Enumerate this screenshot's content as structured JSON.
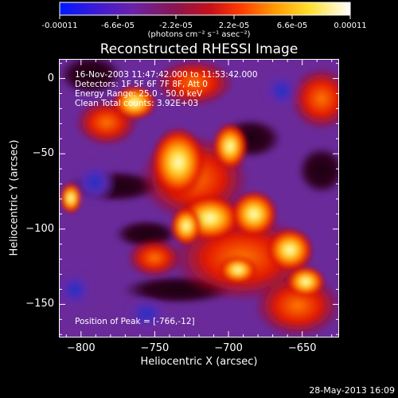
{
  "colorbar": {
    "tick_labels": [
      "-0.00011",
      "-6.6e-05",
      "-2.2e-05",
      "2.2e-05",
      "6.6e-05",
      "0.00011"
    ],
    "units": "(photons cm⁻² s⁻¹ asec⁻²)",
    "min": -0.00011,
    "max": 0.00011
  },
  "chart_data": {
    "type": "heatmap",
    "title": "Reconstructed RHESSI Image",
    "xlabel": "Heliocentric X (arcsec)",
    "ylabel": "Heliocentric Y (arcsec)",
    "xlim": [
      -815,
      -625
    ],
    "ylim": [
      -172,
      13
    ],
    "x_ticks": [
      -800,
      -750,
      -700,
      -650
    ],
    "x_tick_labels": [
      "−800",
      "−750",
      "−700",
      "−650"
    ],
    "y_ticks": [
      0,
      -50,
      -100,
      -150
    ],
    "y_tick_labels": [
      "0",
      "−50",
      "−100",
      "−150"
    ],
    "peak_position": [
      -766,
      -12
    ],
    "colormap": "blue-purple-red-yellow-white (rainbow 3)"
  },
  "annotations": {
    "line1": "16-Nov-2003 11:47:42.000 to 11:53:42.000",
    "line2": "Detectors: 1F 5F 6F 7F 8F, Att 0",
    "line3": "Energy Range: 25.0 - 50.0 keV",
    "line4": "Clean    Total counts: 3.92E+03",
    "peak": "Position of Peak = [-766,-12]"
  },
  "footer": {
    "timestamp": "28-May-2013 16:09"
  }
}
